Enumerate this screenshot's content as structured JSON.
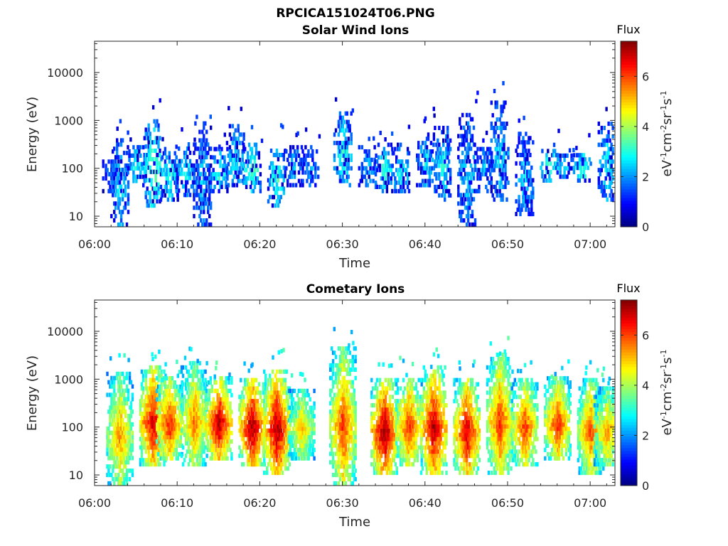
{
  "figure_title": "RPCICA151024T06.PNG",
  "chart_data": [
    {
      "type": "heatmap",
      "title": "Solar Wind Ions",
      "xlabel": "Time",
      "ylabel": "Energy (eV)",
      "x_range": [
        "06:00",
        "07:03"
      ],
      "x_ticks": [
        "06:00",
        "06:10",
        "06:20",
        "06:30",
        "06:40",
        "06:50",
        "07:00"
      ],
      "y_scale": "log",
      "y_range": [
        6,
        45000
      ],
      "y_ticks": [
        "10",
        "100",
        "1000",
        "10000"
      ],
      "colorbar": {
        "title": "Flux",
        "label": "eV-1cm-2sr-1s-1",
        "range": [
          0,
          7.4
        ],
        "ticks": [
          "0",
          "2",
          "4",
          "6"
        ],
        "colormap": "jet"
      },
      "bursts": [
        {
          "t": "06:02",
          "e_min": 30,
          "e_max": 150,
          "flux": 1.6
        },
        {
          "t": "06:03",
          "e_min": 6,
          "e_max": 400,
          "flux": 2.2
        },
        {
          "t": "06:05",
          "e_min": 40,
          "e_max": 300,
          "flux": 2.4
        },
        {
          "t": "06:07",
          "e_min": 15,
          "e_max": 1000,
          "flux": 3.2
        },
        {
          "t": "06:09",
          "e_min": 20,
          "e_max": 250,
          "flux": 2.6
        },
        {
          "t": "06:11",
          "e_min": 25,
          "e_max": 300,
          "flux": 2.3
        },
        {
          "t": "06:13",
          "e_min": 6,
          "e_max": 900,
          "flux": 2.0
        },
        {
          "t": "06:15",
          "e_min": 30,
          "e_max": 250,
          "flux": 2.6
        },
        {
          "t": "06:17",
          "e_min": 40,
          "e_max": 700,
          "flux": 2.4
        },
        {
          "t": "06:19",
          "e_min": 30,
          "e_max": 300,
          "flux": 2.9
        },
        {
          "t": "06:22",
          "e_min": 15,
          "e_max": 300,
          "flux": 2.7
        },
        {
          "t": "06:24",
          "e_min": 40,
          "e_max": 300,
          "flux": 1.9
        },
        {
          "t": "06:26",
          "e_min": 40,
          "e_max": 250,
          "flux": 1.8
        },
        {
          "t": "06:30",
          "e_min": 40,
          "e_max": 1400,
          "flux": 2.6
        },
        {
          "t": "06:33",
          "e_min": 40,
          "e_max": 300,
          "flux": 2.1
        },
        {
          "t": "06:35",
          "e_min": 30,
          "e_max": 300,
          "flux": 2.7
        },
        {
          "t": "06:37",
          "e_min": 30,
          "e_max": 300,
          "flux": 2.5
        },
        {
          "t": "06:40",
          "e_min": 40,
          "e_max": 500,
          "flux": 2.3
        },
        {
          "t": "06:42",
          "e_min": 20,
          "e_max": 700,
          "flux": 2.4
        },
        {
          "t": "06:45",
          "e_min": 6,
          "e_max": 1400,
          "flux": 2.2
        },
        {
          "t": "06:47",
          "e_min": 30,
          "e_max": 300,
          "flux": 2.0
        },
        {
          "t": "06:49",
          "e_min": 20,
          "e_max": 2500,
          "flux": 2.2
        },
        {
          "t": "06:52",
          "e_min": 10,
          "e_max": 500,
          "flux": 2.2
        },
        {
          "t": "06:55",
          "e_min": 50,
          "e_max": 250,
          "flux": 2.8
        },
        {
          "t": "06:57",
          "e_min": 60,
          "e_max": 200,
          "flux": 2.2
        },
        {
          "t": "06:59",
          "e_min": 50,
          "e_max": 200,
          "flux": 3.0
        },
        {
          "t": "07:02",
          "e_min": 20,
          "e_max": 900,
          "flux": 2.4
        }
      ]
    },
    {
      "type": "heatmap",
      "title": "Cometary Ions",
      "xlabel": "Time",
      "ylabel": "Energy (eV)",
      "x_range": [
        "06:00",
        "07:03"
      ],
      "x_ticks": [
        "06:00",
        "06:10",
        "06:20",
        "06:30",
        "06:40",
        "06:50",
        "07:00"
      ],
      "y_scale": "log",
      "y_range": [
        6,
        45000
      ],
      "y_ticks": [
        "10",
        "100",
        "1000",
        "10000"
      ],
      "colorbar": {
        "title": "Flux",
        "label": "eV-1cm-2sr-1s-1",
        "range": [
          0,
          7.4
        ],
        "ticks": [
          "0",
          "2",
          "4",
          "6"
        ],
        "colormap": "jet"
      },
      "bursts": [
        {
          "t": "06:03",
          "e_min": 6,
          "e_max": 1300,
          "flux": 4.6
        },
        {
          "t": "06:07",
          "e_min": 15,
          "e_max": 1800,
          "flux": 5.8
        },
        {
          "t": "06:09",
          "e_min": 20,
          "e_max": 1000,
          "flux": 5.4
        },
        {
          "t": "06:12",
          "e_min": 15,
          "e_max": 2000,
          "flux": 4.8
        },
        {
          "t": "06:15",
          "e_min": 20,
          "e_max": 1000,
          "flux": 6.0
        },
        {
          "t": "06:19",
          "e_min": 15,
          "e_max": 1000,
          "flux": 6.2
        },
        {
          "t": "06:22",
          "e_min": 10,
          "e_max": 1500,
          "flux": 6.1
        },
        {
          "t": "06:25",
          "e_min": 20,
          "e_max": 600,
          "flux": 4.4
        },
        {
          "t": "06:30",
          "e_min": 6,
          "e_max": 4000,
          "flux": 5.2
        },
        {
          "t": "06:35",
          "e_min": 10,
          "e_max": 1000,
          "flux": 6.2
        },
        {
          "t": "06:38",
          "e_min": 15,
          "e_max": 1000,
          "flux": 5.3
        },
        {
          "t": "06:41",
          "e_min": 10,
          "e_max": 1600,
          "flux": 6.0
        },
        {
          "t": "06:45",
          "e_min": 10,
          "e_max": 1000,
          "flux": 5.8
        },
        {
          "t": "06:49",
          "e_min": 10,
          "e_max": 3000,
          "flux": 5.2
        },
        {
          "t": "06:52",
          "e_min": 15,
          "e_max": 1000,
          "flux": 5.2
        },
        {
          "t": "06:56",
          "e_min": 20,
          "e_max": 1000,
          "flux": 5.3
        },
        {
          "t": "07:00",
          "e_min": 10,
          "e_max": 1000,
          "flux": 5.0
        },
        {
          "t": "07:02",
          "e_min": 15,
          "e_max": 600,
          "flux": 4.6
        }
      ]
    }
  ]
}
